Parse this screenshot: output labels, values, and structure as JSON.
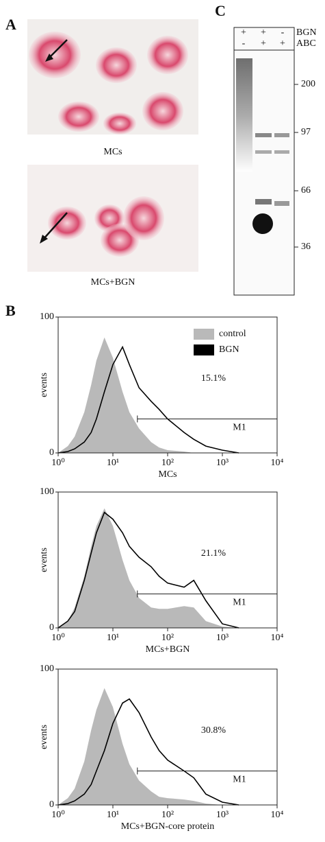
{
  "panel_labels": [
    "A",
    "B",
    "C"
  ],
  "panel_a": {
    "captions": [
      "MCs",
      "MCs+BGN"
    ]
  },
  "panel_c": {
    "rows": [
      {
        "label": "BGN",
        "lanes": [
          "+",
          "+",
          "-"
        ]
      },
      {
        "label": "ABC",
        "lanes": [
          "-",
          "+",
          "+"
        ]
      }
    ],
    "markers": [
      "200",
      "97",
      "66",
      "36"
    ]
  },
  "chart_data": [
    {
      "type": "histogram-overlay",
      "xlabel": "MCs",
      "ylabel": "events",
      "annotation": "15.1%",
      "gate": {
        "label": "M1",
        "x": [
          28,
          10000
        ],
        "y": 25
      },
      "log_x": true,
      "legend": "upper right",
      "xlim": [
        1,
        10000
      ],
      "ylim": [
        0,
        100
      ],
      "xticks": [
        {
          "value": 1,
          "label": "10⁰"
        },
        {
          "value": 10,
          "label": "10¹"
        },
        {
          "value": 100,
          "label": "10²"
        },
        {
          "value": 1000,
          "label": "10³"
        },
        {
          "value": 10000,
          "label": "10⁴"
        }
      ],
      "yticks": [
        0,
        100
      ],
      "x": [
        1,
        1.5,
        2,
        3,
        4,
        5,
        7,
        10,
        15,
        20,
        30,
        50,
        70,
        100,
        200,
        300,
        500,
        1000,
        2000
      ],
      "series": [
        {
          "name": "control",
          "color": "#b9b9b9",
          "values": [
            0,
            5,
            12,
            30,
            50,
            68,
            85,
            70,
            45,
            30,
            18,
            8,
            4,
            2,
            1,
            0,
            0,
            0,
            0
          ]
        },
        {
          "name": "BGN",
          "color": "#000000",
          "values": [
            0,
            1,
            3,
            8,
            15,
            25,
            45,
            65,
            78,
            65,
            48,
            38,
            32,
            25,
            15,
            10,
            5,
            2,
            0
          ]
        }
      ]
    },
    {
      "type": "histogram-overlay",
      "xlabel": "MCs+BGN",
      "ylabel": "events",
      "annotation": "21.1%",
      "gate": {
        "label": "M1",
        "x": [
          28,
          10000
        ],
        "y": 25
      },
      "log_x": true,
      "xlim": [
        1,
        10000
      ],
      "ylim": [
        0,
        100
      ],
      "xticks": [
        {
          "value": 1,
          "label": "10⁰"
        },
        {
          "value": 10,
          "label": "10¹"
        },
        {
          "value": 100,
          "label": "10²"
        },
        {
          "value": 1000,
          "label": "10³"
        },
        {
          "value": 10000,
          "label": "10⁴"
        }
      ],
      "yticks": [
        0,
        100
      ],
      "x": [
        1,
        1.5,
        2,
        3,
        4,
        5,
        7,
        10,
        15,
        20,
        30,
        50,
        70,
        100,
        200,
        300,
        500,
        1000,
        2000
      ],
      "series": [
        {
          "color": "#b9b9b9",
          "values": [
            0,
            5,
            15,
            38,
            60,
            75,
            88,
            75,
            50,
            35,
            22,
            15,
            14,
            14,
            16,
            15,
            5,
            1,
            0
          ]
        },
        {
          "color": "#000000",
          "values": [
            0,
            5,
            12,
            35,
            55,
            70,
            85,
            80,
            70,
            60,
            52,
            45,
            38,
            33,
            30,
            35,
            20,
            3,
            0
          ]
        }
      ]
    },
    {
      "type": "histogram-overlay",
      "xlabel": "MCs+BGN-core protein",
      "ylabel": "events",
      "annotation": "30.8%",
      "gate": {
        "label": "M1",
        "x": [
          28,
          10000
        ],
        "y": 25
      },
      "log_x": true,
      "xlim": [
        1,
        10000
      ],
      "ylim": [
        0,
        100
      ],
      "xticks": [
        {
          "value": 1,
          "label": "10⁰"
        },
        {
          "value": 10,
          "label": "10¹"
        },
        {
          "value": 100,
          "label": "10²"
        },
        {
          "value": 1000,
          "label": "10³"
        },
        {
          "value": 10000,
          "label": "10⁴"
        }
      ],
      "yticks": [
        0,
        100
      ],
      "x": [
        1,
        1.5,
        2,
        3,
        4,
        5,
        7,
        10,
        15,
        20,
        30,
        50,
        70,
        100,
        200,
        300,
        500,
        1000,
        2000
      ],
      "series": [
        {
          "color": "#b9b9b9",
          "values": [
            0,
            5,
            12,
            32,
            55,
            70,
            86,
            72,
            45,
            30,
            18,
            10,
            6,
            5,
            4,
            3,
            1,
            0,
            0
          ]
        },
        {
          "color": "#000000",
          "values": [
            0,
            1,
            3,
            8,
            15,
            25,
            40,
            60,
            75,
            78,
            68,
            50,
            40,
            33,
            25,
            20,
            8,
            2,
            0
          ]
        }
      ]
    }
  ]
}
